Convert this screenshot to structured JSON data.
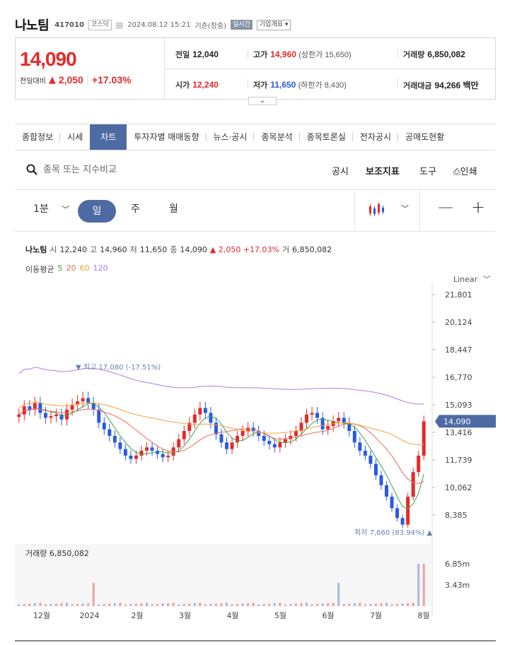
{
  "header": {
    "name": "나노팀",
    "code": "417010",
    "market": "코스닥",
    "datetime": "2024.08.12 15:21",
    "basis": "기준(장중)",
    "realtime": "실시간",
    "company_info": "기업개요 ▾"
  },
  "quote": {
    "price": "14,090",
    "change_label": "전일대비",
    "change": "2,050",
    "change_pct": "+17.03%",
    "prev_close_label": "전일",
    "prev_close": "12,040",
    "open_label": "시가",
    "open": "12,240",
    "high_label": "고가",
    "high": "14,960",
    "upper_limit": "(상한가 15,650)",
    "low_label": "저가",
    "low": "11,650",
    "lower_limit": "(하한가 8,430)",
    "volume_label": "거래량",
    "volume": "6,850,082",
    "amount_label": "거래대금",
    "amount": "94,266 백만"
  },
  "tabs": [
    "종합정보",
    "시세",
    "차트",
    "투자자별 매매동향",
    "뉴스·공시",
    "종목분석",
    "종목토론실",
    "전자공시",
    "공매도현황"
  ],
  "active_tab": "차트",
  "search": {
    "placeholder": "종목 또는 지수비교"
  },
  "tools": {
    "disclosure": "공시",
    "indicator": "보조지표",
    "tool": "도구",
    "print": "인쇄"
  },
  "period": {
    "minute": "1분",
    "day": "일",
    "week": "주",
    "month": "월"
  },
  "chart_info": {
    "name": "나노팀",
    "open_k": "시",
    "open": "12,240",
    "high_k": "고",
    "high": "14,960",
    "low_k": "저",
    "low": "11,650",
    "close_k": "종",
    "close": "14,090",
    "change": "▲ 2,050 +17.03%",
    "vol_k": "거",
    "vol": "6,850,082",
    "ma_label": "이동평균",
    "ma5": "5",
    "ma20": "20",
    "ma60": "60",
    "ma120": "120",
    "scale": "Linear",
    "high_marker": "▼ 최고 17,080 (-17.51%)",
    "low_marker": "최저 7,660 (83.94%) ▲",
    "last_price_tag": "14,090",
    "volume_label": "거래량 6,850,082"
  },
  "colors": {
    "up": "#e22b2b",
    "down": "#2b5ae2",
    "accent": "#4d6aa3",
    "ma5": "#3aa64a",
    "ma20": "#f06a5a",
    "ma60": "#f5a33a",
    "ma120": "#b07ae8"
  },
  "chart_data": {
    "type": "candlestick",
    "y_ticks": [
      "21,801",
      "20,124",
      "18,447",
      "16,770",
      "15,093",
      "13,416",
      "11,739",
      "10,062",
      "8,385"
    ],
    "ylim": [
      6708,
      23478
    ],
    "x_ticks": [
      "12월",
      "2024",
      "2월",
      "3월",
      "4월",
      "5월",
      "6월",
      "7월",
      "8월"
    ],
    "volume_ticks": [
      "6.85m",
      "3.43m"
    ],
    "close_approx": [
      14500,
      15000,
      14800,
      15200,
      14600,
      14300,
      14400,
      14500,
      14200,
      14800,
      15100,
      15300,
      15500,
      15200,
      14800,
      14000,
      13600,
      13200,
      12800,
      12400,
      12000,
      11800,
      12000,
      12300,
      12500,
      12300,
      12100,
      11900,
      12000,
      12500,
      13000,
      13500,
      14000,
      14500,
      14900,
      14600,
      14000,
      13300,
      12800,
      12400,
      12800,
      13200,
      13500,
      13700,
      13500,
      13200,
      12900,
      12700,
      12500,
      12800,
      13000,
      13200,
      13500,
      14000,
      14500,
      14600,
      14300,
      13600,
      13800,
      14100,
      14300,
      14000,
      13500,
      12800,
      12300,
      12000,
      11500,
      10800,
      10200,
      9500,
      8800,
      8200,
      7800,
      9500,
      11000,
      12000,
      14090
    ]
  }
}
